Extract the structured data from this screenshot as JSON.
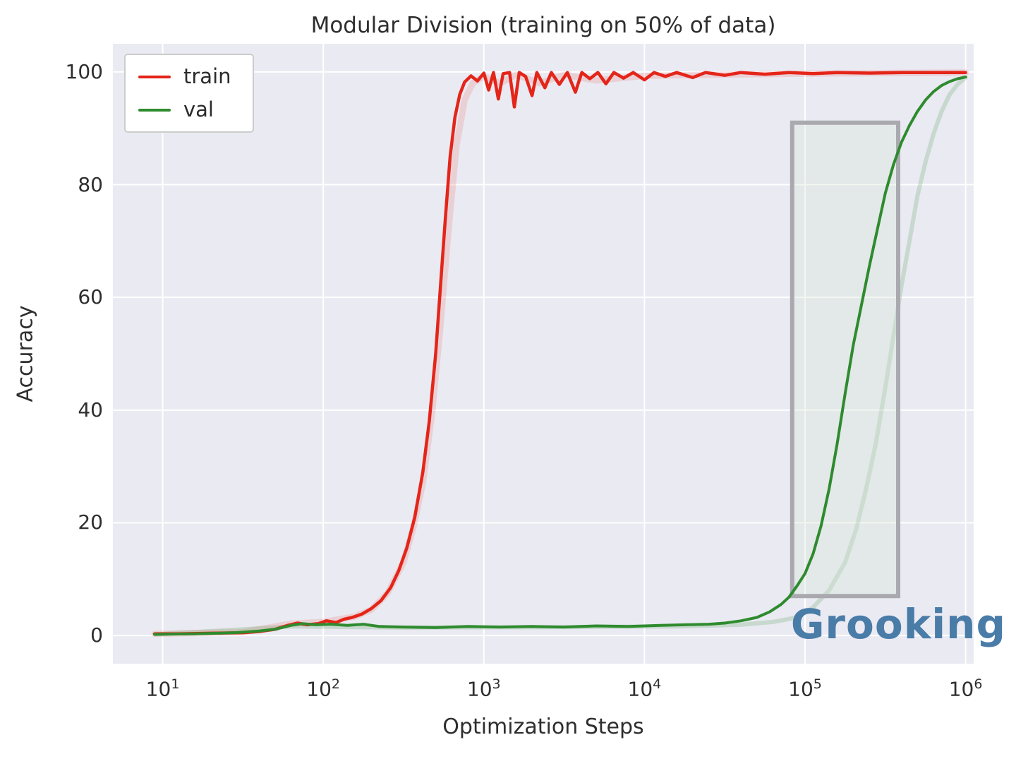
{
  "watermark": "Grooking",
  "chart_data": {
    "type": "line",
    "title": "Modular Division (training on 50% of data)",
    "xlabel": "Optimization Steps",
    "ylabel": "Accuracy",
    "x_scale": "log",
    "xlim_log10": [
      0.69,
      6.05
    ],
    "ylim": [
      -5,
      105
    ],
    "grid": true,
    "background": "#eaeaf2",
    "grid_color": "#ffffff",
    "x_ticks": [
      {
        "log": 1,
        "base": "10",
        "exp": "1"
      },
      {
        "log": 2,
        "base": "10",
        "exp": "2"
      },
      {
        "log": 3,
        "base": "10",
        "exp": "3"
      },
      {
        "log": 4,
        "base": "10",
        "exp": "4"
      },
      {
        "log": 5,
        "base": "10",
        "exp": "5"
      },
      {
        "log": 6,
        "base": "10",
        "exp": "6"
      }
    ],
    "y_ticks": [
      0,
      20,
      40,
      60,
      80,
      100
    ],
    "legend": {
      "position": "upper left",
      "items": [
        {
          "label": "train",
          "color": "#e42519"
        },
        {
          "label": "val",
          "color": "#2e8b2e"
        }
      ]
    },
    "annotation_box": {
      "x0_log10": 4.92,
      "x1_log10": 5.58,
      "y0": 7,
      "y1": 91,
      "stroke": "#a9a9af",
      "fill": "rgba(215,228,215,0.35)",
      "stroke_width": 6
    },
    "series": [
      {
        "name": "train_band",
        "color": "#e42519",
        "width": 9,
        "opacity": 0.13,
        "points": [
          [
            0.95,
            0.3
          ],
          [
            1.5,
            0.6
          ],
          [
            1.8,
            2.1
          ],
          [
            2.0,
            2.4
          ],
          [
            2.2,
            3.4
          ],
          [
            2.3,
            4.6
          ],
          [
            2.4,
            7.5
          ],
          [
            2.5,
            13
          ],
          [
            2.56,
            19
          ],
          [
            2.62,
            27
          ],
          [
            2.68,
            40
          ],
          [
            2.73,
            55
          ],
          [
            2.78,
            72
          ],
          [
            2.83,
            87
          ],
          [
            2.88,
            95
          ],
          [
            2.93,
            98
          ],
          [
            3.0,
            99.2
          ],
          [
            3.1,
            98
          ],
          [
            3.2,
            99.5
          ],
          [
            3.35,
            98
          ],
          [
            3.5,
            99.5
          ],
          [
            3.7,
            98.5
          ],
          [
            4.0,
            99.3
          ],
          [
            4.4,
            99.5
          ],
          [
            5.0,
            99.7
          ],
          [
            6.0,
            99.9
          ]
        ]
      },
      {
        "name": "val_band",
        "color": "#2e8b2e",
        "width": 6,
        "opacity": 0.18,
        "points": [
          [
            0.95,
            0.2
          ],
          [
            1.8,
            1.6
          ],
          [
            2.5,
            1.4
          ],
          [
            3.5,
            1.5
          ],
          [
            4.2,
            1.6
          ],
          [
            4.6,
            1.9
          ],
          [
            4.8,
            2.4
          ],
          [
            4.95,
            3.2
          ],
          [
            5.05,
            5
          ],
          [
            5.15,
            8
          ],
          [
            5.25,
            13
          ],
          [
            5.32,
            19
          ],
          [
            5.38,
            26
          ],
          [
            5.44,
            34
          ],
          [
            5.5,
            44
          ],
          [
            5.55,
            53
          ],
          [
            5.6,
            62
          ],
          [
            5.65,
            70
          ],
          [
            5.7,
            78
          ],
          [
            5.75,
            84
          ],
          [
            5.8,
            89
          ],
          [
            5.85,
            93
          ],
          [
            5.9,
            96
          ],
          [
            5.95,
            97.8
          ],
          [
            6.0,
            99
          ]
        ]
      },
      {
        "name": "train",
        "color": "#e42519",
        "width": 4.5,
        "opacity": 1,
        "points": [
          [
            0.95,
            0.3
          ],
          [
            1.1,
            0.3
          ],
          [
            1.3,
            0.4
          ],
          [
            1.5,
            0.5
          ],
          [
            1.6,
            0.7
          ],
          [
            1.7,
            1.1
          ],
          [
            1.78,
            1.8
          ],
          [
            1.84,
            2.2
          ],
          [
            1.9,
            1.9
          ],
          [
            1.97,
            2.1
          ],
          [
            2.02,
            2.6
          ],
          [
            2.08,
            2.3
          ],
          [
            2.13,
            2.9
          ],
          [
            2.18,
            3.2
          ],
          [
            2.24,
            3.8
          ],
          [
            2.3,
            4.8
          ],
          [
            2.36,
            6.2
          ],
          [
            2.42,
            8.5
          ],
          [
            2.47,
            11.5
          ],
          [
            2.52,
            15.5
          ],
          [
            2.57,
            21
          ],
          [
            2.62,
            29
          ],
          [
            2.66,
            38
          ],
          [
            2.7,
            50
          ],
          [
            2.73,
            62
          ],
          [
            2.76,
            74
          ],
          [
            2.79,
            85
          ],
          [
            2.82,
            92
          ],
          [
            2.85,
            96
          ],
          [
            2.88,
            98.2
          ],
          [
            2.92,
            99.3
          ],
          [
            2.96,
            98.4
          ],
          [
            3.0,
            99.8
          ],
          [
            3.03,
            96.8
          ],
          [
            3.06,
            99.9
          ],
          [
            3.09,
            95.2
          ],
          [
            3.12,
            99.7
          ],
          [
            3.16,
            99.9
          ],
          [
            3.19,
            93.8
          ],
          [
            3.22,
            99.9
          ],
          [
            3.26,
            99.2
          ],
          [
            3.3,
            95.8
          ],
          [
            3.33,
            99.9
          ],
          [
            3.38,
            97.2
          ],
          [
            3.42,
            99.9
          ],
          [
            3.47,
            97.8
          ],
          [
            3.52,
            99.9
          ],
          [
            3.57,
            96.4
          ],
          [
            3.61,
            99.9
          ],
          [
            3.66,
            98.8
          ],
          [
            3.71,
            99.9
          ],
          [
            3.76,
            97.9
          ],
          [
            3.81,
            99.9
          ],
          [
            3.87,
            98.9
          ],
          [
            3.93,
            99.9
          ],
          [
            4.0,
            98.6
          ],
          [
            4.06,
            99.9
          ],
          [
            4.13,
            99.2
          ],
          [
            4.2,
            99.9
          ],
          [
            4.3,
            99.0
          ],
          [
            4.38,
            99.9
          ],
          [
            4.5,
            99.4
          ],
          [
            4.6,
            99.9
          ],
          [
            4.75,
            99.6
          ],
          [
            4.9,
            99.9
          ],
          [
            5.05,
            99.7
          ],
          [
            5.2,
            99.9
          ],
          [
            5.4,
            99.8
          ],
          [
            5.6,
            99.9
          ],
          [
            5.8,
            99.9
          ],
          [
            6.0,
            99.9
          ]
        ]
      },
      {
        "name": "val",
        "color": "#2e8b2e",
        "width": 4,
        "opacity": 1,
        "points": [
          [
            0.95,
            0.2
          ],
          [
            1.2,
            0.3
          ],
          [
            1.45,
            0.5
          ],
          [
            1.6,
            0.8
          ],
          [
            1.7,
            1.1
          ],
          [
            1.8,
            1.8
          ],
          [
            1.87,
            2.1
          ],
          [
            1.95,
            1.9
          ],
          [
            2.05,
            2.0
          ],
          [
            2.15,
            1.8
          ],
          [
            2.25,
            2.0
          ],
          [
            2.35,
            1.6
          ],
          [
            2.5,
            1.5
          ],
          [
            2.7,
            1.4
          ],
          [
            2.9,
            1.6
          ],
          [
            3.1,
            1.5
          ],
          [
            3.3,
            1.6
          ],
          [
            3.5,
            1.5
          ],
          [
            3.7,
            1.7
          ],
          [
            3.9,
            1.6
          ],
          [
            4.1,
            1.8
          ],
          [
            4.25,
            1.9
          ],
          [
            4.4,
            2.0
          ],
          [
            4.5,
            2.2
          ],
          [
            4.6,
            2.6
          ],
          [
            4.7,
            3.2
          ],
          [
            4.78,
            4.2
          ],
          [
            4.85,
            5.5
          ],
          [
            4.9,
            6.8
          ],
          [
            4.95,
            8.8
          ],
          [
            5.0,
            11
          ],
          [
            5.05,
            14.5
          ],
          [
            5.1,
            19.5
          ],
          [
            5.15,
            26
          ],
          [
            5.2,
            34
          ],
          [
            5.25,
            43
          ],
          [
            5.3,
            51.5
          ],
          [
            5.35,
            58.5
          ],
          [
            5.4,
            65.5
          ],
          [
            5.45,
            72
          ],
          [
            5.5,
            78.5
          ],
          [
            5.55,
            83.5
          ],
          [
            5.6,
            87.5
          ],
          [
            5.65,
            90.5
          ],
          [
            5.7,
            93
          ],
          [
            5.75,
            95
          ],
          [
            5.8,
            96.5
          ],
          [
            5.85,
            97.6
          ],
          [
            5.9,
            98.3
          ],
          [
            5.95,
            98.8
          ],
          [
            6.0,
            99.1
          ]
        ]
      }
    ]
  }
}
